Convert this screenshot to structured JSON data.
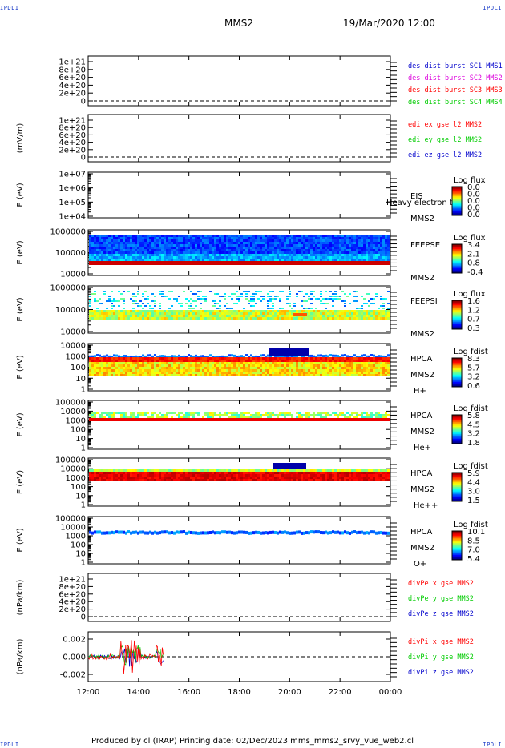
{
  "corner_label": "IPDLI",
  "title": "MMS2",
  "datetime": "19/Mar/2020 12:00",
  "footer": "Produced by cl (IRAP)   Printing date: 02/Dec/2023   mms_mms2_srvy_vue_web2.cl",
  "colors": {
    "red": "#ff0000",
    "green": "#00cc00",
    "blue": "#0000cc",
    "magenta": "#dd00dd",
    "yellow": "#e6e600"
  },
  "chart_data": [
    {
      "type": "line",
      "ylabel": "",
      "yticks": [
        "1e+21",
        "8e+20",
        "6e+20",
        "4e+20",
        "2e+20",
        "0"
      ],
      "legend": [
        {
          "text": "des dist burst SC1 MMS1",
          "color": "#0000cc"
        },
        {
          "text": "des dist burst SC2 MMS2",
          "color": "#dd00dd"
        },
        {
          "text": "des dist burst SC3 MMS3",
          "color": "#ff0000"
        },
        {
          "text": "des dist burst SC4 MMS4",
          "color": "#00cc00"
        }
      ]
    },
    {
      "type": "line",
      "ylabel": "(mV/m)",
      "yticks": [
        "1e+21",
        "8e+20",
        "6e+20",
        "4e+20",
        "2e+20",
        "0"
      ],
      "legend": [
        {
          "text": "edi ex gse l2 MMS2",
          "color": "#ff0000"
        },
        {
          "text": "edi ey gse l2 MMS2",
          "color": "#00cc00"
        },
        {
          "text": "edi ez gse l2 MMS2",
          "color": "#0000cc"
        }
      ]
    },
    {
      "type": "heatmap",
      "ylabel": "E (eV)",
      "yticks": [
        "1e+07",
        "1e+06",
        "1e+05",
        "1e+04"
      ],
      "labels": [
        "EIS",
        "MMS2"
      ],
      "overlay": "Heavy electron tof",
      "cb_title": "Log flux",
      "cb_ticks": [
        "0.0",
        "0.0",
        "0.0",
        "0.0",
        "0.0"
      ]
    },
    {
      "type": "heatmap",
      "ylabel": "E (eV)",
      "yticks": [
        "1000000",
        "100000",
        "10000"
      ],
      "labels": [
        "FEEPSE",
        "MMS2"
      ],
      "cb_title": "Log flux",
      "cb_ticks": [
        "3.4",
        "2.1",
        "0.8",
        "-0.4"
      ]
    },
    {
      "type": "heatmap",
      "ylabel": "E (eV)",
      "yticks": [
        "1000000",
        "100000",
        "10000"
      ],
      "labels": [
        "FEEPSI",
        "MMS2"
      ],
      "cb_title": "Log flux",
      "cb_ticks": [
        "1.6",
        "1.2",
        "0.7",
        "0.3"
      ]
    },
    {
      "type": "heatmap",
      "ylabel": "E (eV)",
      "yticks": [
        "10000",
        "1000",
        "100",
        "10",
        "1"
      ],
      "labels": [
        "HPCA",
        "MMS2",
        "H+"
      ],
      "cb_title": "Log fdist",
      "cb_ticks": [
        "8.3",
        "5.7",
        "3.2",
        "0.6"
      ]
    },
    {
      "type": "heatmap",
      "ylabel": "E (eV)",
      "yticks": [
        "100000",
        "10000",
        "1000",
        "100",
        "10",
        "1"
      ],
      "labels": [
        "HPCA",
        "MMS2",
        "He+"
      ],
      "cb_title": "Log fdist",
      "cb_ticks": [
        "5.8",
        "4.5",
        "3.2",
        "1.8"
      ]
    },
    {
      "type": "heatmap",
      "ylabel": "E (eV)",
      "yticks": [
        "100000",
        "10000",
        "1000",
        "100",
        "10",
        "1"
      ],
      "labels": [
        "HPCA",
        "MMS2",
        "He++"
      ],
      "cb_title": "Log fdist",
      "cb_ticks": [
        "5.9",
        "4.4",
        "3.0",
        "1.5"
      ]
    },
    {
      "type": "heatmap",
      "ylabel": "E (eV)",
      "yticks": [
        "100000",
        "10000",
        "1000",
        "100",
        "10",
        "1"
      ],
      "labels": [
        "HPCA",
        "MMS2",
        "O+"
      ],
      "cb_title": "Log fdist",
      "cb_ticks": [
        "10.1",
        "8.5",
        "7.0",
        "5.4"
      ]
    },
    {
      "type": "line",
      "ylabel": "(nPa/km)",
      "yticks": [
        "1e+21",
        "8e+20",
        "6e+20",
        "4e+20",
        "2e+20",
        "0"
      ],
      "legend": [
        {
          "text": "divPe x gse MMS2",
          "color": "#ff0000"
        },
        {
          "text": "divPe y gse MMS2",
          "color": "#00cc00"
        },
        {
          "text": "divPe z gse MMS2",
          "color": "#0000cc"
        }
      ]
    },
    {
      "type": "line",
      "ylabel": "(nPa/km)",
      "yticks": [
        "0.002",
        "0.000",
        "-0.002"
      ],
      "legend": [
        {
          "text": "divPi x gse MMS2",
          "color": "#ff0000"
        },
        {
          "text": "divPi y gse MMS2",
          "color": "#00cc00"
        },
        {
          "text": "divPi z gse MMS2",
          "color": "#0000cc"
        }
      ]
    }
  ],
  "x_axis": {
    "ticks": [
      "12:00",
      "14:00",
      "16:00",
      "18:00",
      "20:00",
      "22:00",
      "00:00"
    ]
  }
}
